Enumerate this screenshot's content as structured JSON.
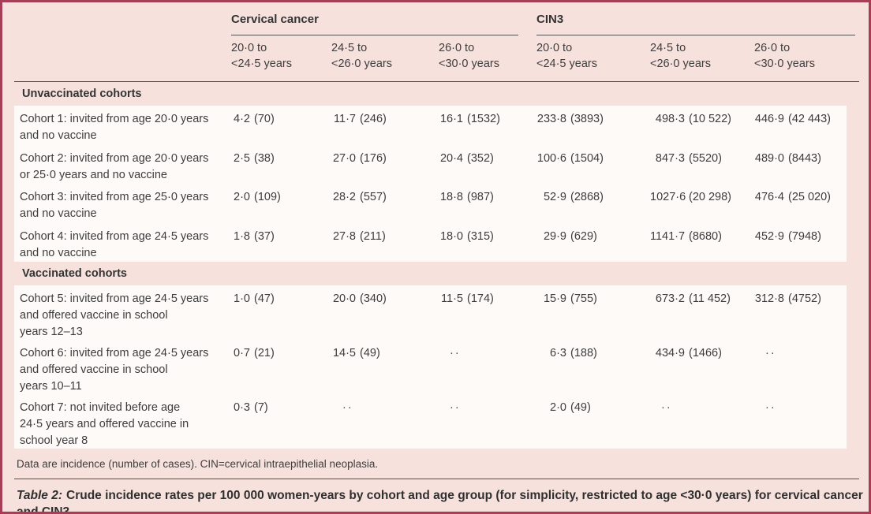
{
  "table": {
    "column_groups": [
      {
        "label": "Cervical cancer"
      },
      {
        "label": "CIN3"
      }
    ],
    "age_columns": [
      {
        "line1": "20·0 to",
        "line2": "<24·5 years"
      },
      {
        "line1": "24·5 to",
        "line2": "<26·0 years"
      },
      {
        "line1": "26·0 to",
        "line2": "<30·0 years"
      },
      {
        "line1": "20·0 to",
        "line2": "<24·5 years"
      },
      {
        "line1": "24·5 to",
        "line2": "<26·0 years"
      },
      {
        "line1": "26·0 to",
        "line2": "<30·0 years"
      }
    ],
    "sections": [
      {
        "header": "Unvaccinated cohorts",
        "rows": [
          {
            "label_lines": [
              "Cohort 1: invited from age 20·0 years",
              "and no vaccine"
            ],
            "values": [
              "4·2 (70)",
              "11·7 (246)",
              "16·1 (1532)",
              "233·8 (3893)",
              "498·3 (10 522)",
              "446·9 (42 443)"
            ]
          },
          {
            "label_lines": [
              "Cohort 2: invited from age 20·0 years",
              "or 25·0 years and no vaccine"
            ],
            "values": [
              "2·5 (38)",
              "27·0 (176)",
              "20·4 (352)",
              "100·6 (1504)",
              "847·3 (5520)",
              "489·0 (8443)"
            ]
          },
          {
            "label_lines": [
              "Cohort 3: invited from age 25·0 years",
              "and no vaccine"
            ],
            "values": [
              "2·0 (109)",
              "28·2 (557)",
              "18·8 (987)",
              "52·9 (2868)",
              "1027·6 (20 298)",
              "476·4 (25 020)"
            ]
          },
          {
            "label_lines": [
              "Cohort 4: invited from age 24·5 years",
              "and no vaccine"
            ],
            "values": [
              "1·8 (37)",
              "27·8 (211)",
              "18·0 (315)",
              "29·9 (629)",
              "1141·7 (8680)",
              "452·9 (7948)"
            ]
          }
        ]
      },
      {
        "header": "Vaccinated cohorts",
        "rows": [
          {
            "label_lines": [
              "Cohort 5: invited from age 24·5 years",
              "and offered vaccine in school",
              "years 12–13"
            ],
            "values": [
              "1·0 (47)",
              "20·0 (340)",
              "11·5 (174)",
              "15·9 (755)",
              "673·2 (11 452)",
              "312·8 (4752)"
            ]
          },
          {
            "label_lines": [
              "Cohort 6: invited from age 24·5 years",
              "and offered vaccine in school",
              "years 10–11"
            ],
            "values": [
              "0·7 (21)",
              "14·5 (49)",
              "··",
              "6·3 (188)",
              "434·9 (1466)",
              "··"
            ]
          },
          {
            "label_lines": [
              "Cohort 7: not invited before age",
              "24·5 years and offered vaccine in",
              "school year 8"
            ],
            "values": [
              "0·3 (7)",
              "··",
              "··",
              "2·0 (49)",
              "··",
              "··"
            ]
          }
        ]
      }
    ],
    "footnote": "Data are incidence (number of cases). CIN=cervical intraepithelial neoplasia.",
    "caption_label": "Table 2:",
    "caption_text": "Crude incidence rates per 100 000 women-years by cohort and age group (for simplicity, restricted to age <30·0 years) for cervical cancer and CIN3"
  },
  "colors": {
    "frame_border": "#a83d58",
    "background_pink": "#f7e1dc",
    "row_background": "#fdfaf8",
    "rule_dark": "#4f5052",
    "text": "#3d3d3d"
  }
}
